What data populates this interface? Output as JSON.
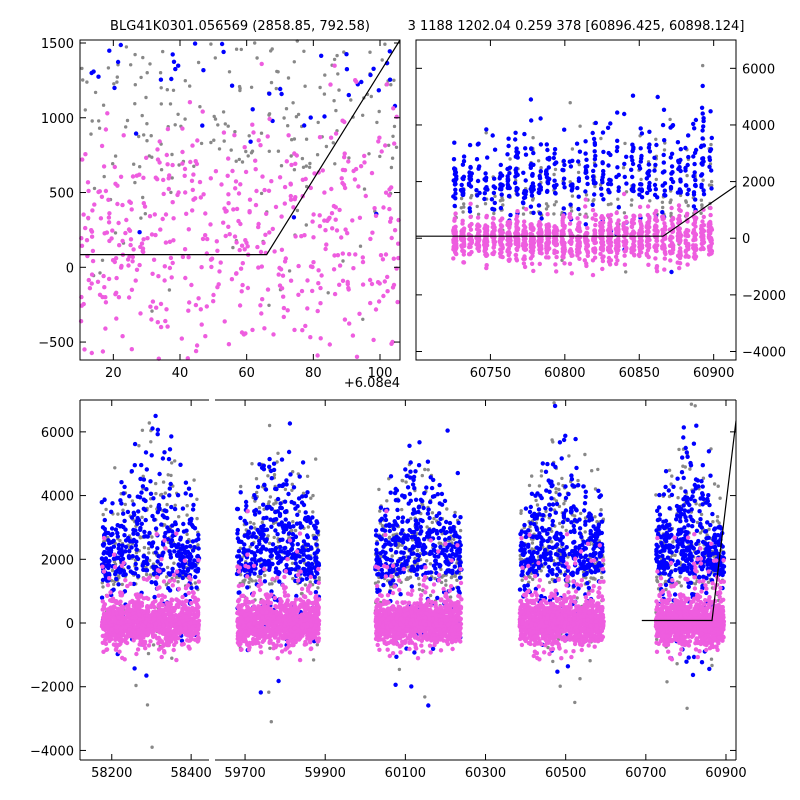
{
  "chart_data": [
    {
      "id": "top_left",
      "type": "scatter",
      "title": "BLG41K0301.056569 (2858.85, 792.58)",
      "xlabel": "",
      "ylabel": "",
      "x_offset_label": "+6.08e4",
      "xlim": [
        10,
        106
      ],
      "ylim": [
        -620,
        1520
      ],
      "xticks": [
        20,
        40,
        60,
        80,
        100
      ],
      "xtick_labels": [
        "20",
        "40",
        "60",
        "80",
        "100"
      ],
      "yticks": [
        -500,
        0,
        500,
        1000,
        1500
      ],
      "ytick_labels": [
        "−500",
        "0",
        "500",
        "1000",
        "1500"
      ],
      "yaxis_side": "left",
      "series": [
        {
          "name": "grey",
          "color": "#888888",
          "n": 260,
          "x_range": [
            10,
            106
          ],
          "center": 650,
          "spread": 650
        },
        {
          "name": "blue",
          "color": "#0000ff",
          "n": 75,
          "x_range": [
            10,
            106
          ],
          "center": 1150,
          "spread": 380
        },
        {
          "name": "magenta",
          "color": "#ee5ddf",
          "n": 520,
          "x_range": [
            10,
            106
          ],
          "center": 150,
          "spread": 450
        }
      ],
      "model_line": {
        "x": [
          10,
          66,
          106
        ],
        "y": [
          85,
          85,
          1520
        ]
      }
    },
    {
      "id": "top_right",
      "type": "scatter",
      "title": "3 1188 1202.04 0.259 378 [60896.425, 60898.124]",
      "xlabel": "",
      "ylabel": "",
      "xlim": [
        60700,
        60915
      ],
      "ylim": [
        -4300,
        7000
      ],
      "xticks": [
        60750,
        60800,
        60850,
        60900
      ],
      "xtick_labels": [
        "60750",
        "60800",
        "60850",
        "60900"
      ],
      "yticks": [
        -4000,
        -2000,
        0,
        2000,
        4000,
        6000
      ],
      "ytick_labels": [
        "−4000",
        "−2000",
        "0",
        "2000",
        "4000",
        "6000"
      ],
      "yaxis_side": "right",
      "series": [
        {
          "name": "grey",
          "color": "#888888",
          "n": 220,
          "x_range": [
            60725,
            60900
          ],
          "center": 700,
          "spread": 1400
        },
        {
          "name": "blue",
          "color": "#0000ff",
          "n": 480,
          "x_range": [
            60725,
            60900
          ],
          "center": 1500,
          "spread": 1300
        },
        {
          "name": "magenta",
          "color": "#ee5ddf",
          "n": 1300,
          "x_range": [
            60725,
            60900
          ],
          "center": 0,
          "spread": 300
        }
      ],
      "model_line": {
        "x": [
          60700,
          60866,
          60915
        ],
        "y": [
          70,
          70,
          1850
        ]
      }
    },
    {
      "id": "bottom",
      "type": "scatter",
      "title": "",
      "xlabel": "",
      "ylabel": "",
      "ylim": [
        -4300,
        7000
      ],
      "yticks": [
        -4000,
        -2000,
        0,
        2000,
        4000,
        6000
      ],
      "ytick_labels": [
        "−4000",
        "−2000",
        "0",
        "2000",
        "4000",
        "6000"
      ],
      "yaxis_side": "left",
      "segments": [
        {
          "xlim": [
            58120,
            58445
          ],
          "xticks": [
            58200,
            58400
          ],
          "xtick_labels": [
            "58200",
            "58400"
          ],
          "data_range": [
            58175,
            58420
          ]
        },
        {
          "xlim": [
            59625,
            60925
          ],
          "xticks": [
            59700,
            59900,
            60100,
            60300,
            60500,
            60700,
            60900
          ],
          "xtick_labels": [
            "59700",
            "59900",
            "60100",
            "60300",
            "60500",
            "60700",
            "60900"
          ]
        }
      ],
      "seasons": [
        [
          59680,
          59885
        ],
        [
          60025,
          60240
        ],
        [
          60385,
          60595
        ],
        [
          60725,
          60895
        ]
      ],
      "series": [
        {
          "name": "grey",
          "color": "#888888",
          "n_per_season": 220,
          "center": 1200,
          "spread": 1600
        },
        {
          "name": "blue",
          "color": "#0000ff",
          "n_per_season": 420,
          "center": 1500,
          "spread": 1300
        },
        {
          "name": "magenta",
          "color": "#ee5ddf",
          "n_per_season": 1100,
          "center": 0,
          "spread": 350
        }
      ],
      "model_line": {
        "x": [
          60690,
          60865,
          60925
        ],
        "y": [
          80,
          80,
          6350
        ]
      }
    }
  ]
}
